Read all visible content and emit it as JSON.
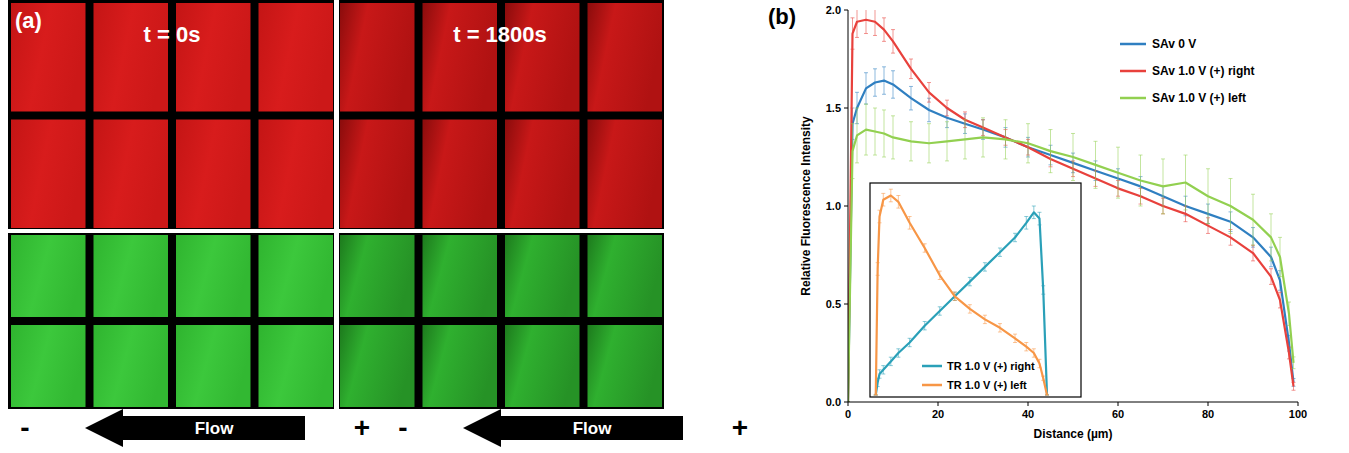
{
  "panel_a": {
    "label": "(a)",
    "time_labels": [
      "t = 0s",
      "t = 1800s"
    ],
    "flow": {
      "text": "Flow",
      "minus": "-",
      "plus": "+"
    }
  },
  "panel_b": {
    "label": "(b)"
  },
  "chart_data": [
    {
      "type": "line",
      "x_label": "Distance (µm)",
      "y_label": "Relative Fluorescence Intensity",
      "x": [
        0,
        1,
        2,
        4,
        6,
        8,
        10,
        14,
        18,
        22,
        26,
        30,
        35,
        40,
        45,
        50,
        55,
        60,
        65,
        70,
        75,
        80,
        85,
        90,
        94,
        96,
        98,
        99
      ],
      "series": [
        {
          "name": "SAv 0 V",
          "color": "#2f7fc1",
          "values": [
            0,
            1.42,
            1.5,
            1.6,
            1.63,
            1.64,
            1.62,
            1.55,
            1.49,
            1.45,
            1.42,
            1.39,
            1.35,
            1.3,
            1.26,
            1.22,
            1.18,
            1.14,
            1.1,
            1.05,
            1.0,
            0.96,
            0.92,
            0.84,
            0.74,
            0.62,
            0.3,
            0.1
          ],
          "errors": [
            0,
            0.08,
            0.08,
            0.08,
            0.07,
            0.07,
            0.07,
            0.06,
            0.06,
            0.05,
            0.05,
            0.05,
            0.05,
            0.05,
            0.05,
            0.05,
            0.05,
            0.05,
            0.05,
            0.05,
            0.05,
            0.05,
            0.05,
            0.05,
            0.05,
            0.05,
            0.04,
            0.02
          ]
        },
        {
          "name": "SAv 1.0 V (+) right",
          "color": "#e8413c",
          "values": [
            0,
            1.88,
            1.94,
            1.95,
            1.94,
            1.9,
            1.84,
            1.7,
            1.58,
            1.5,
            1.44,
            1.4,
            1.35,
            1.3,
            1.24,
            1.19,
            1.14,
            1.09,
            1.05,
            1.0,
            0.96,
            0.9,
            0.84,
            0.76,
            0.64,
            0.52,
            0.25,
            0.08
          ],
          "errors": [
            0,
            0.08,
            0.08,
            0.07,
            0.07,
            0.06,
            0.06,
            0.05,
            0.05,
            0.04,
            0.04,
            0.04,
            0.04,
            0.04,
            0.04,
            0.04,
            0.04,
            0.04,
            0.04,
            0.04,
            0.04,
            0.04,
            0.04,
            0.04,
            0.04,
            0.04,
            0.03,
            0.02
          ]
        },
        {
          "name": "SAv 1.0 V (+) left",
          "color": "#92d050",
          "values": [
            0,
            1.28,
            1.36,
            1.39,
            1.38,
            1.37,
            1.35,
            1.33,
            1.32,
            1.33,
            1.34,
            1.35,
            1.34,
            1.32,
            1.28,
            1.25,
            1.21,
            1.17,
            1.13,
            1.1,
            1.12,
            1.05,
            1.0,
            0.93,
            0.84,
            0.74,
            0.45,
            0.2
          ],
          "errors": [
            0,
            0.14,
            0.14,
            0.13,
            0.12,
            0.12,
            0.11,
            0.1,
            0.1,
            0.1,
            0.1,
            0.1,
            0.1,
            0.1,
            0.11,
            0.12,
            0.12,
            0.13,
            0.13,
            0.14,
            0.14,
            0.14,
            0.14,
            0.13,
            0.12,
            0.1,
            0.06,
            0.03
          ]
        }
      ],
      "xlim": [
        0,
        100
      ],
      "xticks": [
        0,
        20,
        40,
        60,
        80,
        100
      ],
      "ylim": [
        0,
        2
      ],
      "yticks": [
        {
          "value": 0,
          "label": "0.0"
        },
        {
          "value": 0.5,
          "label": "0.5"
        },
        {
          "value": 1,
          "label": "1.0"
        },
        {
          "value": 1.5,
          "label": "1.5"
        },
        {
          "value": 2,
          "label": "2.0"
        }
      ],
      "grid": false,
      "legend": "top-right"
    },
    {
      "type": "line",
      "x": [
        1,
        1.5,
        2,
        3,
        5,
        7,
        10,
        14,
        18,
        22,
        26,
        30,
        34,
        38,
        41,
        43,
        44.5,
        45.5,
        46.5
      ],
      "series": [
        {
          "name": "TR 1.0 V (+) right",
          "color": "#2aa0b8",
          "values": [
            0,
            0.06,
            0.1,
            0.12,
            0.16,
            0.2,
            0.25,
            0.33,
            0.4,
            0.47,
            0.54,
            0.61,
            0.68,
            0.75,
            0.82,
            0.87,
            0.84,
            0.5,
            0
          ],
          "errors": [
            0,
            0.02,
            0.02,
            0.02,
            0.02,
            0.02,
            0.02,
            0.02,
            0.02,
            0.02,
            0.02,
            0.02,
            0.02,
            0.02,
            0.03,
            0.03,
            0.03,
            0.02,
            0
          ]
        },
        {
          "name": "TR 1.0 V (+) left",
          "color": "#f79646",
          "values": [
            0,
            0.6,
            0.85,
            0.93,
            0.95,
            0.92,
            0.82,
            0.7,
            0.57,
            0.47,
            0.41,
            0.36,
            0.32,
            0.27,
            0.23,
            0.2,
            0.15,
            0.08,
            0
          ],
          "errors": [
            0,
            0.03,
            0.03,
            0.03,
            0.03,
            0.03,
            0.03,
            0.02,
            0.02,
            0.02,
            0.02,
            0.02,
            0.02,
            0.02,
            0.02,
            0.02,
            0.02,
            0.01,
            0
          ]
        }
      ],
      "xlim": [
        0,
        55
      ],
      "ylim": [
        0,
        1
      ],
      "tick_labels": false,
      "grid": false,
      "legend": "bottom"
    }
  ]
}
